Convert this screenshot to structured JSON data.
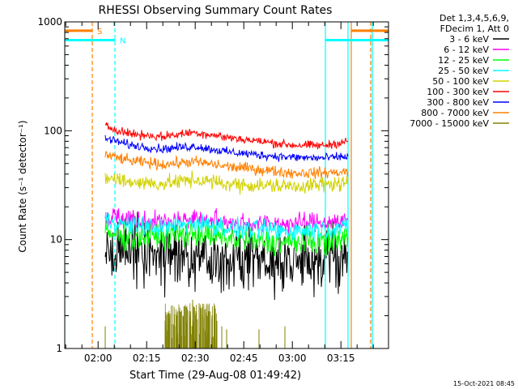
{
  "chart_data": {
    "type": "line",
    "title": "RHESSI Observing Summary Count Rates",
    "xlabel": "Start Time (29-Aug-08 01:49:42)",
    "ylabel": "Count Rate (s⁻¹ detector⁻¹)",
    "yscale": "log",
    "ylim": [
      1,
      1000
    ],
    "xlim_minutes": [
      0,
      100
    ],
    "x_tick_labels": [
      {
        "t": 10.3,
        "label": "02:00"
      },
      {
        "t": 25.3,
        "label": "02:15"
      },
      {
        "t": 40.3,
        "label": "02:30"
      },
      {
        "t": 55.3,
        "label": "02:45"
      },
      {
        "t": 70.3,
        "label": "03:00"
      },
      {
        "t": 85.3,
        "label": "03:15"
      }
    ],
    "y_tick_labels": [
      {
        "v": 1,
        "label": "1"
      },
      {
        "v": 10,
        "label": "10"
      },
      {
        "v": 100,
        "label": "100"
      },
      {
        "v": 1000,
        "label": "1000"
      }
    ],
    "legend_header": [
      "Det 1,3,4,5,6,9,",
      "FDecim 1, Att 0"
    ],
    "legend_position": "right",
    "data_start_minute": 12.5,
    "data_end_minute": 87.5,
    "series": [
      {
        "name": "3 - 6 keV",
        "color": "#000000",
        "profile": [
          [
            12.5,
            8.5
          ],
          [
            20,
            7.5
          ],
          [
            30,
            7.5
          ],
          [
            40,
            7.8
          ],
          [
            50,
            6.8
          ],
          [
            60,
            6.4
          ],
          [
            70,
            6.3
          ],
          [
            80,
            6.6
          ],
          [
            87.5,
            7
          ]
        ],
        "noise": 0.15
      },
      {
        "name": "6 - 12 keV",
        "color": "#ff00ff",
        "profile": [
          [
            12.5,
            17
          ],
          [
            20,
            15.5
          ],
          [
            30,
            14.5
          ],
          [
            40,
            15.5
          ],
          [
            50,
            14.5
          ],
          [
            60,
            14
          ],
          [
            70,
            14
          ],
          [
            80,
            14.5
          ],
          [
            87.5,
            15
          ]
        ],
        "noise": 0.045
      },
      {
        "name": "12 - 25 keV",
        "color": "#00ff00",
        "profile": [
          [
            12.5,
            11.5
          ],
          [
            20,
            10.5
          ],
          [
            30,
            10.8
          ],
          [
            40,
            11.5
          ],
          [
            50,
            10.3
          ],
          [
            60,
            9.6
          ],
          [
            70,
            9.4
          ],
          [
            80,
            9.7
          ],
          [
            87.5,
            10.5
          ]
        ],
        "noise": 0.06
      },
      {
        "name": "25 - 50 keV",
        "color": "#00ffff",
        "profile": [
          [
            12.5,
            15
          ],
          [
            20,
            13.5
          ],
          [
            30,
            12.8
          ],
          [
            40,
            14.2
          ],
          [
            50,
            12.8
          ],
          [
            60,
            12.2
          ],
          [
            70,
            12
          ],
          [
            80,
            12.4
          ],
          [
            87.5,
            13
          ]
        ],
        "noise": 0.045
      },
      {
        "name": "50 - 100 keV",
        "color": "#d2d200",
        "profile": [
          [
            12.5,
            37
          ],
          [
            20,
            34
          ],
          [
            30,
            32.5
          ],
          [
            40,
            35.5
          ],
          [
            50,
            32.5
          ],
          [
            60,
            31.5
          ],
          [
            70,
            31
          ],
          [
            80,
            32
          ],
          [
            87.5,
            33
          ]
        ],
        "noise": 0.035
      },
      {
        "name": "100 - 300 keV",
        "color": "#ff0000",
        "profile": [
          [
            12.5,
            110
          ],
          [
            20,
            94
          ],
          [
            30,
            88
          ],
          [
            40,
            97
          ],
          [
            50,
            87
          ],
          [
            60,
            80
          ],
          [
            70,
            74
          ],
          [
            80,
            73
          ],
          [
            87.5,
            80
          ]
        ],
        "noise": 0.02
      },
      {
        "name": "300 - 800 keV",
        "color": "#0000ff",
        "profile": [
          [
            12.5,
            85
          ],
          [
            20,
            74
          ],
          [
            30,
            68
          ],
          [
            40,
            72
          ],
          [
            50,
            64
          ],
          [
            60,
            60
          ],
          [
            70,
            57
          ],
          [
            80,
            56
          ],
          [
            87.5,
            58
          ]
        ],
        "noise": 0.02
      },
      {
        "name": "800 - 7000 keV",
        "color": "#ff8000",
        "profile": [
          [
            12.5,
            60
          ],
          [
            20,
            53
          ],
          [
            30,
            49
          ],
          [
            40,
            52
          ],
          [
            50,
            47
          ],
          [
            60,
            44
          ],
          [
            70,
            41
          ],
          [
            80,
            41
          ],
          [
            87.5,
            42
          ]
        ],
        "noise": 0.025
      },
      {
        "name": "7000 - 15000 keV",
        "color": "#808000",
        "profile": [],
        "noise": 0
      }
    ],
    "olive_bursts": [
      [
        12.5,
        1.6
      ],
      [
        31,
        1.8
      ],
      [
        32.5,
        2.1
      ],
      [
        34,
        1.6
      ],
      [
        35.5,
        2.2
      ],
      [
        36.5,
        2.0
      ],
      [
        37.5,
        2.4
      ],
      [
        38.5,
        2.0
      ],
      [
        39.5,
        2.8
      ],
      [
        40.5,
        2.2
      ],
      [
        41.5,
        2.6
      ],
      [
        42.5,
        2.4
      ],
      [
        43.5,
        2.0
      ],
      [
        44.5,
        2.2
      ],
      [
        45.5,
        2.0
      ],
      [
        47,
        1.8
      ],
      [
        48.5,
        1.6
      ],
      [
        50,
        1.5
      ],
      [
        60,
        1.5
      ],
      [
        68,
        1.6
      ]
    ],
    "annotations": [
      {
        "kind": "saa",
        "label": "S",
        "color": "#ff8000",
        "t_start": 0,
        "t_end": 8.5,
        "t_end2": 88.5,
        "t_end3": 100,
        "value": 830
      },
      {
        "kind": "night",
        "label": "N",
        "color": "#00ffff",
        "t_start": 0,
        "t_end": 15.5,
        "t_end2": 80.5,
        "t_end3": 100,
        "value": 680
      }
    ],
    "vertical_markers": [
      {
        "color": "#00ffff",
        "t": 0,
        "style": "solid"
      },
      {
        "color": "#ff8000",
        "t": 8.5,
        "style": "dashed"
      },
      {
        "color": "#00ffff",
        "t": 15.5,
        "style": "dashed"
      },
      {
        "color": "#00ffff",
        "t": 80.5,
        "style": "solid"
      },
      {
        "color": "#00ffff",
        "t": 87.5,
        "style": "solid"
      },
      {
        "color": "#ff8000",
        "t": 88.5,
        "style": "solid"
      },
      {
        "color": "#ff8000",
        "t": 94.5,
        "style": "dashed"
      },
      {
        "color": "#00ffff",
        "t": 95,
        "style": "solid"
      }
    ],
    "footer_timestamp": "15-Oct-2021 08:45"
  }
}
